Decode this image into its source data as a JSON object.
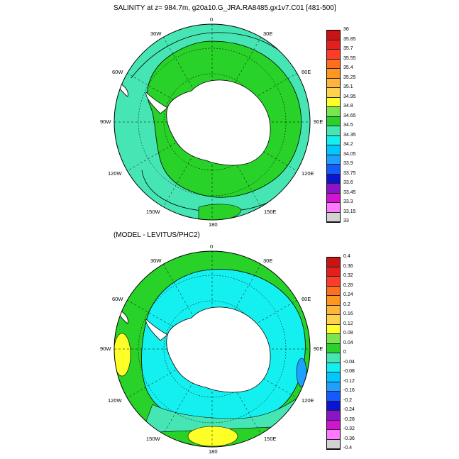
{
  "plots": [
    {
      "title": "SALINITY at z= 984.7m, g20a10.G_JRA.RA8485.gx1v7.C01 [481-500]",
      "colorbar_labels": [
        "36",
        "35.85",
        "35.7",
        "35.55",
        "35.4",
        "35.25",
        "35.1",
        "34.95",
        "34.8",
        "34.65",
        "34.5",
        "34.35",
        "34.2",
        "34.05",
        "33.9",
        "33.75",
        "33.6",
        "33.45",
        "33.3",
        "33.15",
        "33"
      ],
      "colorbar_colors": [
        "#c81414",
        "#e61e1e",
        "#ff3c28",
        "#ff6e1e",
        "#ff961e",
        "#ffb43c",
        "#ffd24b",
        "#ffff28",
        "#78e650",
        "#28d228",
        "#46e6b4",
        "#14f0f0",
        "#00c8ff",
        "#1ea0ff",
        "#145aff",
        "#0a14d2",
        "#8c14c8",
        "#d214d2",
        "#ff78ff",
        "#d2d2d2"
      ]
    },
    {
      "title": "(MODEL - LEVITUS/PHC2)",
      "colorbar_labels": [
        "0.4",
        "0.36",
        "0.32",
        "0.28",
        "0.24",
        "0.2",
        "0.16",
        "0.12",
        "0.08",
        "0.04",
        "0",
        "-0.04",
        "-0.08",
        "-0.12",
        "-0.16",
        "-0.2",
        "-0.24",
        "-0.28",
        "-0.32",
        "-0.36",
        "-0.4"
      ],
      "colorbar_colors": [
        "#c81414",
        "#e61e1e",
        "#ff3c28",
        "#ff6e1e",
        "#ff961e",
        "#ffb43c",
        "#ffd24b",
        "#ffff28",
        "#78e650",
        "#28d228",
        "#46e6b4",
        "#14f0f0",
        "#00c8ff",
        "#1ea0ff",
        "#145aff",
        "#0a14d2",
        "#8c14c8",
        "#d214d2",
        "#ff78ff",
        "#d2d2d2"
      ]
    }
  ],
  "longitude_labels": {
    "top": "0",
    "bottom": "180",
    "left": "90W",
    "right": "90E",
    "upper_left": "30W",
    "upper_right": "30E",
    "left_upper": "60W",
    "right_upper": "60E",
    "left_lower": "120W",
    "right_lower": "120E",
    "lower_left": "150W",
    "lower_right": "150E"
  },
  "colors": {
    "ocean_top": "#46e6b4",
    "band_top": "#28d228",
    "ocean_bottom": "#46e6b4",
    "pos_anom": "#28d228",
    "neg_anom": "#14f0f0",
    "strong_pos": "#ffff28",
    "strong_neg": "#1ea0ff",
    "land": "#ffffff"
  }
}
